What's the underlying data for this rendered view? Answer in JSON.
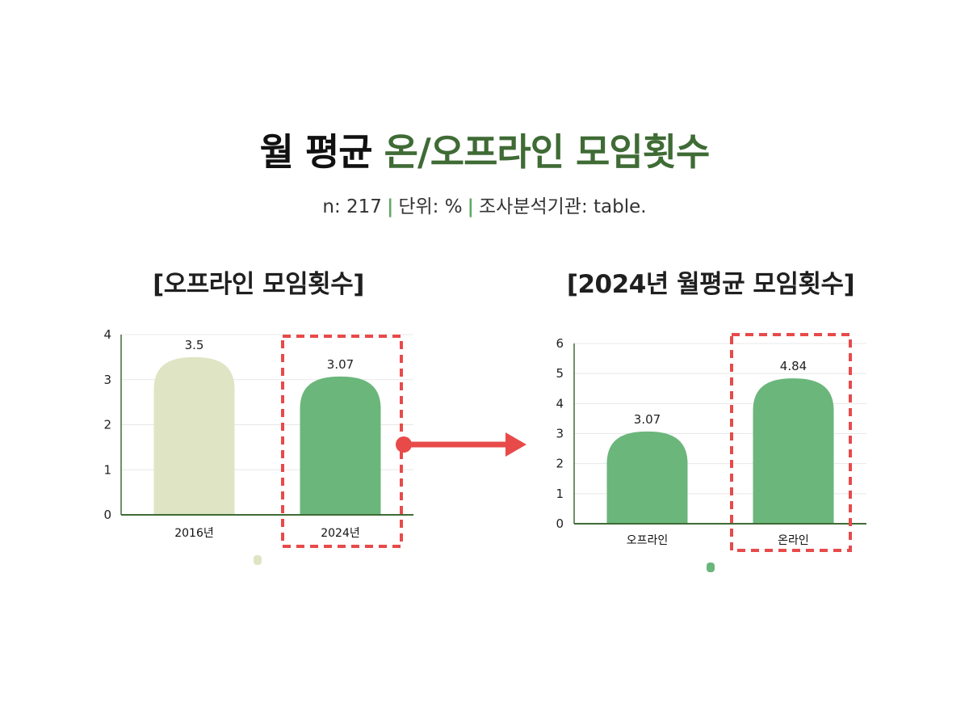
{
  "header": {
    "title_main": "월 평균 ",
    "title_accent": "온/오프라인 모임횟수",
    "subtitle_n": "n: 217",
    "subtitle_unit": "단위: %",
    "subtitle_source": "조사분석기관: table.",
    "separator": "|"
  },
  "colors": {
    "accent": "#3f6b35",
    "bar_light": "#dfe5c4",
    "bar_green": "#6bb67b",
    "highlight": "#e84a4a",
    "axis": "#3f6b35",
    "grid": "#e8e8e8"
  },
  "chart_data": [
    {
      "type": "bar",
      "title": "[오프라인 모임횟수]",
      "categories": [
        "2016년",
        "2024년"
      ],
      "values": [
        3.5,
        3.07
      ],
      "value_labels": [
        "3.5",
        "3.07"
      ],
      "bar_colors": [
        "#dfe5c4",
        "#6bb67b"
      ],
      "ylim": [
        0,
        4
      ],
      "yticks": [
        0,
        1,
        2,
        3,
        4
      ],
      "highlighted_category": "2024년",
      "grid": true
    },
    {
      "type": "bar",
      "title": "[2024년 월평균 모임횟수]",
      "categories": [
        "오프라인",
        "온라인"
      ],
      "values": [
        3.07,
        4.84
      ],
      "value_labels": [
        "3.07",
        "4.84"
      ],
      "bar_colors": [
        "#6bb67b",
        "#6bb67b"
      ],
      "ylim": [
        0,
        6
      ],
      "yticks": [
        0,
        1,
        2,
        3,
        4,
        5,
        6
      ],
      "highlighted_category": "온라인",
      "grid": true
    }
  ]
}
